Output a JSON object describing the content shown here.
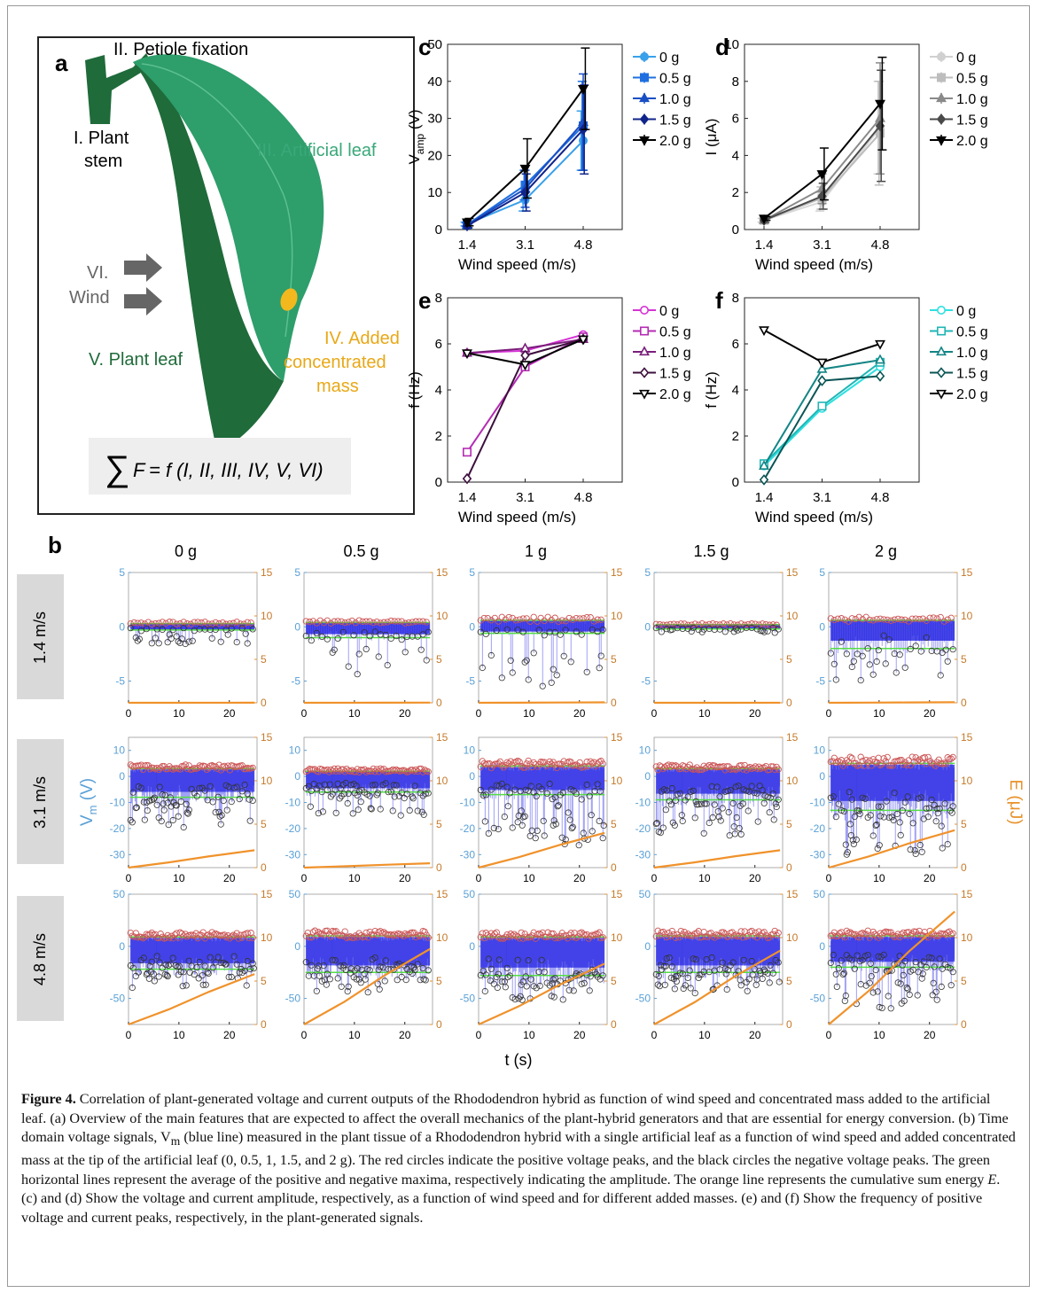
{
  "panel_a": {
    "label": "a",
    "stem_label_1": "I. Plant",
    "stem_label_2": "stem",
    "petiole_label": "II. Petiole fixation",
    "artificial_leaf_label": "III. Artificial leaf",
    "mass_label_1": "IV. Added",
    "mass_label_2": "concentrated",
    "mass_label_3": "mass",
    "plant_leaf_label": "V. Plant leaf",
    "wind_label_1": "VI.",
    "wind_label_2": "Wind",
    "equation_lhs": "F",
    "equation_rhs": "= f (I, II, III, IV, V, VI)",
    "colors": {
      "artificial_leaf": "#2e9e6b",
      "plant_leaf": "#1f6b3a",
      "mass": "#f2b81d",
      "arrow": "#666666"
    }
  },
  "small_panels": [
    {
      "label": "c",
      "ylabel_main": "V",
      "ylabel_sub": "amp",
      "ylabel_unit": " (V)",
      "xlabel": "Wind speed (m/s)",
      "yticks": [
        "0",
        "10",
        "20",
        "30",
        "40",
        "50"
      ],
      "xticks": [
        "1.4",
        "3.1",
        "4.8"
      ],
      "legend": [
        "0 g",
        "0.5 g",
        "1.0 g",
        "1.5 g",
        "2.0 g"
      ]
    },
    {
      "label": "d",
      "ylabel_main": "I (μA)",
      "ylabel_sub": "",
      "ylabel_unit": "",
      "xlabel": "Wind speed (m/s)",
      "yticks": [
        "0",
        "2",
        "4",
        "6",
        "8",
        "10"
      ],
      "xticks": [
        "1.4",
        "3.1",
        "4.8"
      ],
      "legend": [
        "0 g",
        "0.5 g",
        "1.0 g",
        "1.5 g",
        "2.0 g"
      ]
    },
    {
      "label": "e",
      "ylabel_main": "f (Hz)",
      "ylabel_sub": "",
      "ylabel_unit": "",
      "xlabel": "Wind speed (m/s)",
      "yticks": [
        "0",
        "2",
        "4",
        "6",
        "8"
      ],
      "xticks": [
        "1.4",
        "3.1",
        "4.8"
      ],
      "legend": [
        "0 g",
        "0.5 g",
        "1.0 g",
        "1.5 g",
        "2.0 g"
      ]
    },
    {
      "label": "f",
      "ylabel_main": "f (Hz)",
      "ylabel_sub": "",
      "ylabel_unit": "",
      "xlabel": "Wind speed (m/s)",
      "yticks": [
        "0",
        "2",
        "4",
        "6",
        "8"
      ],
      "xticks": [
        "1.4",
        "3.1",
        "4.8"
      ],
      "legend": [
        "0 g",
        "0.5 g",
        "1.0 g",
        "1.5 g",
        "2.0 g"
      ]
    }
  ],
  "panel_b": {
    "label": "b",
    "column_titles": [
      "0 g",
      "0.5 g",
      "1 g",
      "1.5 g",
      "2 g"
    ],
    "row_labels": [
      "1.4 m/s",
      "3.1 m/s",
      "4.8 m/s"
    ],
    "left_axis_label_main": "V",
    "left_axis_label_sub": "m",
    "left_axis_label_unit": " (V)",
    "right_axis_label": "E (μJ)",
    "xlabel": "t (s)",
    "xticks": [
      "0",
      "10",
      "20"
    ],
    "right_ticks": [
      "0",
      "5",
      "10",
      "15"
    ],
    "row_left_ticks": [
      [
        "-5",
        "0",
        "5"
      ],
      [
        "-30",
        "-20",
        "-10",
        "0",
        "10"
      ],
      [
        "-50",
        "0",
        "50"
      ]
    ]
  },
  "chart_data": [
    {
      "type": "line",
      "panel": "c",
      "x": [
        1.4,
        3.1,
        4.8
      ],
      "ylim": [
        0,
        50
      ],
      "xlabel": "Wind speed (m/s)",
      "ylabel": "Vamp (V)",
      "series": [
        {
          "name": "0 g",
          "values": [
            1.5,
            8,
            24
          ],
          "err": [
            0.5,
            3,
            8
          ],
          "color": "#39a0ea"
        },
        {
          "name": "0.5 g",
          "values": [
            1.3,
            12,
            28
          ],
          "err": [
            0.5,
            4,
            12
          ],
          "color": "#1f6fe0"
        },
        {
          "name": "1.0 g",
          "values": [
            1.2,
            11,
            29
          ],
          "err": [
            0.5,
            5,
            13
          ],
          "color": "#1a4fc4"
        },
        {
          "name": "1.5 g",
          "values": [
            1.0,
            10,
            27
          ],
          "err": [
            0.5,
            5,
            12
          ],
          "color": "#10248a"
        },
        {
          "name": "2.0 g",
          "values": [
            2.0,
            16.5,
            38
          ],
          "err": [
            1,
            8,
            11
          ],
          "color": "#000000"
        }
      ]
    },
    {
      "type": "line",
      "panel": "d",
      "x": [
        1.4,
        3.1,
        4.8
      ],
      "ylim": [
        0,
        10
      ],
      "xlabel": "Wind speed (m/s)",
      "ylabel": "I (μA)",
      "series": [
        {
          "name": "0 g",
          "values": [
            0.5,
            1.5,
            5.5
          ],
          "err": [
            0.1,
            0.5,
            2.5
          ],
          "color": "#e6e6e6"
        },
        {
          "name": "0.5 g",
          "values": [
            0.5,
            1.7,
            5.2
          ],
          "err": [
            0.1,
            0.6,
            2.8
          ],
          "color": "#bdbdbd"
        },
        {
          "name": "1.0 g",
          "values": [
            0.5,
            2.2,
            6.0
          ],
          "err": [
            0.1,
            0.8,
            3.0
          ],
          "color": "#8a8a8a"
        },
        {
          "name": "1.5 g",
          "values": [
            0.5,
            1.8,
            5.6
          ],
          "err": [
            0.1,
            0.7,
            3.0
          ],
          "color": "#4a4a4a"
        },
        {
          "name": "2.0 g",
          "values": [
            0.6,
            3.0,
            6.8
          ],
          "err": [
            0.1,
            1.4,
            2.5
          ],
          "color": "#000000"
        }
      ]
    },
    {
      "type": "line",
      "panel": "e",
      "x": [
        1.4,
        3.1,
        4.8
      ],
      "ylim": [
        0,
        8
      ],
      "xlabel": "Wind speed (m/s)",
      "ylabel": "f (Hz)",
      "series": [
        {
          "name": "0 g",
          "values": [
            5.6,
            5.7,
            6.4
          ],
          "color": "#d633d6"
        },
        {
          "name": "0.5 g",
          "values": [
            1.3,
            5.0,
            6.3
          ],
          "color": "#b52bb5"
        },
        {
          "name": "1.0 g",
          "values": [
            5.6,
            5.8,
            6.2
          ],
          "color": "#7a1f7a"
        },
        {
          "name": "1.5 g",
          "values": [
            0.15,
            5.5,
            6.2
          ],
          "color": "#3d0f3d"
        },
        {
          "name": "2.0 g",
          "values": [
            5.6,
            5.1,
            6.2
          ],
          "color": "#000000"
        }
      ]
    },
    {
      "type": "line",
      "panel": "f",
      "x": [
        1.4,
        3.1,
        4.8
      ],
      "ylim": [
        0,
        8
      ],
      "xlabel": "Wind speed (m/s)",
      "ylabel": "f (Hz)",
      "series": [
        {
          "name": "0 g",
          "values": [
            0.7,
            3.2,
            5.0
          ],
          "color": "#2fe0e0"
        },
        {
          "name": "0.5 g",
          "values": [
            0.8,
            3.3,
            5.2
          ],
          "color": "#20b5b5"
        },
        {
          "name": "1.0 g",
          "values": [
            0.7,
            4.9,
            5.3
          ],
          "color": "#148585"
        },
        {
          "name": "1.5 g",
          "values": [
            0.1,
            4.4,
            4.6
          ],
          "color": "#0b5555"
        },
        {
          "name": "2.0 g",
          "values": [
            6.6,
            5.2,
            6.0
          ],
          "color": "#000000"
        }
      ]
    },
    {
      "type": "line",
      "panel": "b",
      "description_type": "time-series grid",
      "rows": [
        {
          "wind": "1.4 m/s",
          "ylim": [
            -7,
            5
          ],
          "cells": [
            {
              "mass": "0 g",
              "avg_pos": 0.3,
              "avg_neg": -0.3,
              "min": -1.6,
              "energy_end": 0.01
            },
            {
              "mass": "0.5 g",
              "avg_pos": 0.4,
              "avg_neg": -1.0,
              "min": -4.5,
              "energy_end": 0.02
            },
            {
              "mass": "1 g",
              "avg_pos": 0.6,
              "avg_neg": -0.6,
              "min": -5.7,
              "energy_end": 0.05
            },
            {
              "mass": "1.5 g",
              "avg_pos": 0.2,
              "avg_neg": -0.2,
              "min": -0.6,
              "energy_end": 0.005
            },
            {
              "mass": "2 g",
              "avg_pos": 0.6,
              "avg_neg": -2.0,
              "min": -5.0,
              "energy_end": 0.06
            }
          ]
        },
        {
          "wind": "3.1 m/s",
          "ylim": [
            -35,
            15
          ],
          "cells": [
            {
              "mass": "0 g",
              "avg_pos": 3,
              "avg_neg": -8,
              "min": -20,
              "energy_end": 2
            },
            {
              "mass": "0.5 g",
              "avg_pos": 2,
              "avg_neg": -6,
              "min": -15,
              "energy_end": 0.5
            },
            {
              "mass": "1 g",
              "avg_pos": 4,
              "avg_neg": -7,
              "min": -27,
              "energy_end": 4
            },
            {
              "mass": "1.5 g",
              "avg_pos": 3,
              "avg_neg": -9,
              "min": -23,
              "energy_end": 2
            },
            {
              "mass": "2 g",
              "avg_pos": 5,
              "avg_neg": -13,
              "min": -30,
              "energy_end": 4.3
            }
          ]
        },
        {
          "wind": "4.8 m/s",
          "ylim": [
            -75,
            50
          ],
          "cells": [
            {
              "mass": "0 g",
              "avg_pos": 9,
              "avg_neg": -22,
              "min": -40,
              "energy_end": 5.8
            },
            {
              "mass": "0.5 g",
              "avg_pos": 10,
              "avg_neg": -25,
              "min": -45,
              "energy_end": 8.7
            },
            {
              "mass": "1 g",
              "avg_pos": 9,
              "avg_neg": -28,
              "min": -52,
              "energy_end": 7.0
            },
            {
              "mass": "1.5 g",
              "avg_pos": 10,
              "avg_neg": -25,
              "min": -45,
              "energy_end": 8.5
            },
            {
              "mass": "2 g",
              "avg_pos": 10,
              "avg_neg": -20,
              "min": -60,
              "energy_end": 13.0
            }
          ]
        }
      ],
      "colors": {
        "signal": "#1010e0",
        "pos_peaks": "#cc4444",
        "neg_peaks": "#222222",
        "average": "#55dd44",
        "energy": "#f0922b"
      }
    }
  ],
  "caption": {
    "figure_label": "Figure 4.",
    "text": "Correlation of plant-generated voltage and current outputs of the Rhododendron hybrid as function of wind speed and concentrated mass added to the artificial leaf. (a) Overview of the main features that are expected to affect the overall mechanics of the plant-hybrid generators and that are essential for energy conversion. (b) Time domain voltage signals, V",
    "vm_sub": "m",
    "text_2": " (blue line) measured in the plant tissue of a Rhododendron hybrid with a single artificial leaf as a function of wind speed and added concentrated mass at the tip of the artificial leaf (0, 0.5, 1, 1.5, and 2 g). The red circles indicate the positive voltage peaks, and the black circles the negative voltage peaks. The green horizontal lines represent the average of the positive and negative maxima, respectively indicating the amplitude. The orange line represents the cumulative sum energy ",
    "energy_symbol": "E",
    "text_3": ". (c) and (d) Show the voltage and current amplitude, respectively, as a function of wind speed and for different added masses. (e) and (f) Show the frequency of positive voltage and current peaks, respectively, in the plant-generated signals."
  }
}
